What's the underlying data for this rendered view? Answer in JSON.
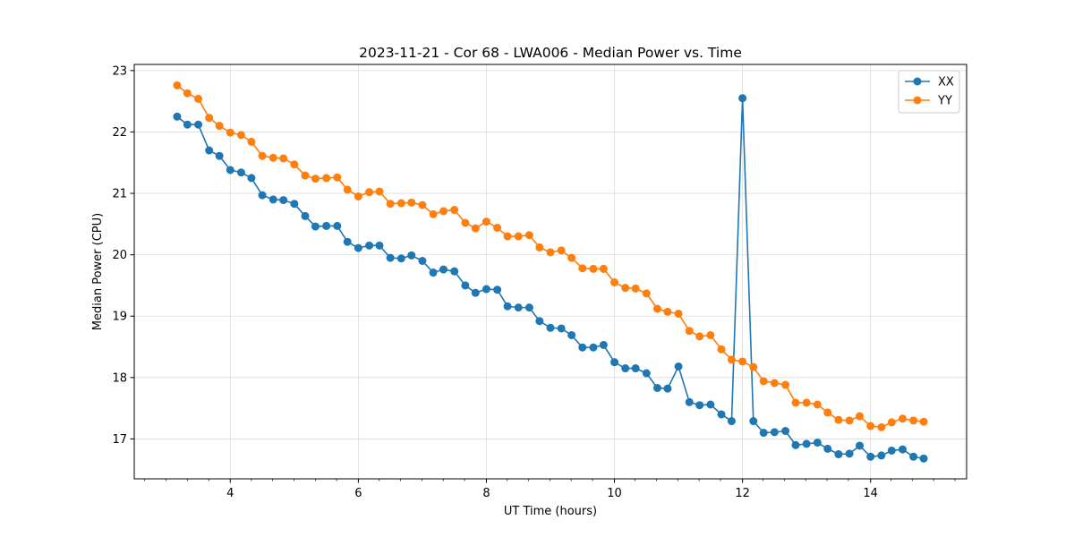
{
  "chart_data": {
    "type": "line",
    "title": "2023-11-21 - Cor 68 - LWA006 - Median Power vs. Time",
    "xlabel": "UT Time (hours)",
    "ylabel": "Median Power (CPU)",
    "xlim": [
      2.5,
      15.5
    ],
    "ylim": [
      16.35,
      23.1
    ],
    "xticks": [
      4,
      6,
      8,
      10,
      12,
      14
    ],
    "xtick_labels": [
      "4",
      "6",
      "8",
      "10",
      "12",
      "14"
    ],
    "xminor_step": 0.333,
    "yticks": [
      17,
      18,
      19,
      20,
      21,
      22,
      23
    ],
    "ytick_labels": [
      "17",
      "18",
      "19",
      "20",
      "21",
      "22",
      "23"
    ],
    "grid": true,
    "legend_position": "top-right",
    "colors": {
      "XX": "#1f77b4",
      "YY": "#ff7f0e"
    },
    "x": [
      3.17,
      3.33,
      3.5,
      3.67,
      3.83,
      4.0,
      4.17,
      4.33,
      4.5,
      4.67,
      4.83,
      5.0,
      5.17,
      5.33,
      5.5,
      5.67,
      5.83,
      6.0,
      6.17,
      6.33,
      6.5,
      6.67,
      6.83,
      7.0,
      7.17,
      7.33,
      7.5,
      7.67,
      7.83,
      8.0,
      8.17,
      8.33,
      8.5,
      8.67,
      8.83,
      9.0,
      9.17,
      9.33,
      9.5,
      9.67,
      9.83,
      10.0,
      10.17,
      10.33,
      10.5,
      10.67,
      10.83,
      11.0,
      11.17,
      11.33,
      11.5,
      11.67,
      11.83,
      12.0,
      12.17,
      12.33,
      12.5,
      12.67,
      12.83,
      13.0,
      13.17,
      13.33,
      13.5,
      13.67,
      13.83,
      14.0,
      14.17,
      14.33,
      14.5,
      14.67,
      14.83
    ],
    "series": [
      {
        "name": "XX",
        "values": [
          22.25,
          22.12,
          22.12,
          21.7,
          21.61,
          21.38,
          21.34,
          21.25,
          20.97,
          20.9,
          20.89,
          20.83,
          20.63,
          20.46,
          20.47,
          20.47,
          20.21,
          20.11,
          20.15,
          20.15,
          19.95,
          19.94,
          19.99,
          19.9,
          19.71,
          19.76,
          19.73,
          19.5,
          19.38,
          19.44,
          19.43,
          19.16,
          19.14,
          19.14,
          18.92,
          18.81,
          18.8,
          18.69,
          18.49,
          18.49,
          18.53,
          18.25,
          18.15,
          18.15,
          18.07,
          17.83,
          17.82,
          18.18,
          17.6,
          17.55,
          17.56,
          17.4,
          17.29,
          22.55,
          17.29,
          17.1,
          17.11,
          17.13,
          16.9,
          16.92,
          16.94,
          16.84,
          16.75,
          16.76,
          16.89,
          16.71,
          16.73,
          16.81,
          16.83,
          16.71,
          16.68
        ]
      },
      {
        "name": "YY",
        "values": [
          22.76,
          22.63,
          22.54,
          22.23,
          22.1,
          21.99,
          21.95,
          21.84,
          21.61,
          21.58,
          21.57,
          21.47,
          21.29,
          21.24,
          21.25,
          21.26,
          21.06,
          20.95,
          21.02,
          21.03,
          20.83,
          20.84,
          20.85,
          20.81,
          20.66,
          20.71,
          20.73,
          20.52,
          20.43,
          20.54,
          20.44,
          20.3,
          20.3,
          20.32,
          20.12,
          20.04,
          20.07,
          19.95,
          19.78,
          19.77,
          19.77,
          19.55,
          19.46,
          19.45,
          19.37,
          19.12,
          19.07,
          19.04,
          18.76,
          18.67,
          18.69,
          18.46,
          18.29,
          18.26,
          18.17,
          17.94,
          17.91,
          17.88,
          17.59,
          17.59,
          17.56,
          17.43,
          17.31,
          17.3,
          17.37,
          17.21,
          17.19,
          17.27,
          17.33,
          17.3,
          17.28
        ]
      }
    ]
  }
}
